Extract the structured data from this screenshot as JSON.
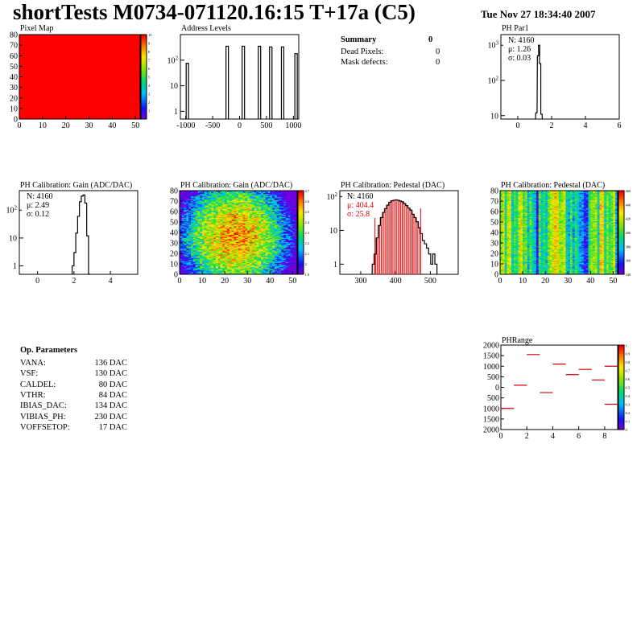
{
  "header": {
    "title": "shortTests M0734-071120.16:15 T+17a (C5)",
    "date": "Tue Nov 27 18:34:40 2007"
  },
  "summary": {
    "title": "Summary",
    "value": "0",
    "rows": [
      {
        "label": "Dead Pixels:",
        "value": "0"
      },
      {
        "label": "Mask defects:",
        "value": "0"
      }
    ]
  },
  "op_parameters": {
    "title": "Op. Parameters",
    "rows": [
      {
        "label": "VANA:",
        "value": "136 DAC"
      },
      {
        "label": "VSF:",
        "value": "130 DAC"
      },
      {
        "label": "CALDEL:",
        "value": "80 DAC"
      },
      {
        "label": "VTHR:",
        "value": "84 DAC"
      },
      {
        "label": "IBIAS_DAC:",
        "value": "134 DAC"
      },
      {
        "label": "VIBIAS_PH:",
        "value": "230 DAC"
      },
      {
        "label": "VOFFSETOP:",
        "value": "17 DAC"
      }
    ]
  },
  "chart_data": [
    {
      "id": "pixel_map",
      "type": "heatmap",
      "title": "Pixel Map",
      "xlim": [
        0,
        52
      ],
      "ylim": [
        0,
        80
      ],
      "x_ticks": [
        "0",
        "10",
        "20",
        "30",
        "40",
        "50"
      ],
      "y_ticks": [
        "0",
        "10",
        "20",
        "30",
        "40",
        "50",
        "60",
        "70",
        "80"
      ],
      "value": 10,
      "color_ticks": [
        "1",
        "2",
        "3",
        "4",
        "5",
        "6",
        "7",
        "8",
        "9",
        "10"
      ]
    },
    {
      "id": "address_levels",
      "type": "bar",
      "title": "Address Levels",
      "log_y": true,
      "xlim": [
        -1100,
        1100
      ],
      "x_ticks": [
        "-1000",
        "-500",
        "0",
        "500",
        "1000"
      ],
      "y_ticks": [
        "1",
        "10",
        "10^2"
      ],
      "peaks": [
        {
          "x": -970,
          "y": 75
        },
        {
          "x": -230,
          "y": 350
        },
        {
          "x": 70,
          "y": 350
        },
        {
          "x": 370,
          "y": 350
        },
        {
          "x": 580,
          "y": 330
        },
        {
          "x": 800,
          "y": 330
        },
        {
          "x": 1050,
          "y": 180
        }
      ]
    },
    {
      "id": "ph_par1",
      "type": "bar",
      "title": "PH Par1",
      "log_y": true,
      "xlim": [
        -1,
        6
      ],
      "x_ticks": [
        "0",
        "2",
        "4",
        "6"
      ],
      "y_ticks": [
        "10",
        "10^2",
        "10^3"
      ],
      "stats": {
        "n": "N: 4160",
        "mu": "μ: 1.26",
        "sigma": "σ: 0.03"
      },
      "bins": [
        [
          1.1,
          12
        ],
        [
          1.2,
          500
        ],
        [
          1.26,
          1000
        ],
        [
          1.32,
          300
        ],
        [
          1.4,
          11
        ]
      ]
    },
    {
      "id": "gain_hist",
      "type": "bar",
      "title": "PH Calibration: Gain (ADC/DAC)",
      "log_y": true,
      "xlim": [
        -1,
        5.5
      ],
      "x_ticks": [
        "0",
        "2",
        "4"
      ],
      "y_ticks": [
        "1",
        "10",
        "10^2"
      ],
      "stats": {
        "n": "N: 4160",
        "mu": "μ: 2.49",
        "sigma": "σ: 0.12"
      },
      "bins": [
        [
          1.95,
          1
        ],
        [
          2.05,
          3
        ],
        [
          2.15,
          15
        ],
        [
          2.25,
          60
        ],
        [
          2.35,
          200
        ],
        [
          2.45,
          320
        ],
        [
          2.55,
          350
        ],
        [
          2.65,
          180
        ],
        [
          2.75,
          12
        ],
        [
          2.85,
          0.5
        ]
      ]
    },
    {
      "id": "gain_map",
      "type": "heatmap",
      "title": "PH Calibration: Gain (ADC/DAC)",
      "xlim": [
        0,
        52
      ],
      "ylim": [
        0,
        80
      ],
      "x_ticks": [
        "0",
        "10",
        "20",
        "30",
        "40",
        "50"
      ],
      "y_ticks": [
        "0",
        "10",
        "20",
        "30",
        "40",
        "50",
        "60",
        "70",
        "80"
      ],
      "zlim": [
        1.9,
        2.7
      ],
      "color_ticks": [
        "1.9",
        "2",
        "2.1",
        "2.2",
        "2.3",
        "2.4",
        "2.5",
        "2.6",
        "2.7"
      ]
    },
    {
      "id": "pedestal_hist",
      "type": "bar",
      "title": "PH Calibration: Pedestal (DAC)",
      "log_y": true,
      "xlim": [
        240,
        580
      ],
      "x_ticks": [
        "300",
        "400",
        "500"
      ],
      "y_ticks": [
        "1",
        "10",
        "10^2"
      ],
      "stats": {
        "n": "N: 4160",
        "mu": "μ: 404.4",
        "sigma": "σ: 25.8"
      },
      "fit_lines": [
        341,
        472
      ],
      "bins": [
        [
          336,
          1
        ],
        [
          342,
          2
        ],
        [
          348,
          6
        ],
        [
          354,
          14
        ],
        [
          360,
          24
        ],
        [
          366,
          34
        ],
        [
          372,
          44
        ],
        [
          378,
          56
        ],
        [
          384,
          68
        ],
        [
          390,
          75
        ],
        [
          396,
          78
        ],
        [
          402,
          80
        ],
        [
          408,
          78
        ],
        [
          414,
          74
        ],
        [
          420,
          70
        ],
        [
          426,
          62
        ],
        [
          432,
          54
        ],
        [
          438,
          46
        ],
        [
          444,
          40
        ],
        [
          450,
          30
        ],
        [
          456,
          24
        ],
        [
          462,
          18
        ],
        [
          468,
          12
        ],
        [
          474,
          8
        ],
        [
          480,
          5
        ],
        [
          486,
          4
        ],
        [
          492,
          3
        ],
        [
          498,
          2
        ],
        [
          504,
          1
        ],
        [
          510,
          2
        ],
        [
          516,
          1
        ]
      ]
    },
    {
      "id": "pedestal_map",
      "type": "heatmap",
      "title": "PH Calibration: Pedestal (DAC)",
      "xlim": [
        0,
        52
      ],
      "ylim": [
        0,
        80
      ],
      "x_ticks": [
        "0",
        "10",
        "20",
        "30",
        "40",
        "50"
      ],
      "y_ticks": [
        "0",
        "10",
        "20",
        "30",
        "40",
        "50",
        "60",
        "70",
        "80"
      ],
      "zlim": [
        340,
        460
      ],
      "color_ticks": [
        "340",
        "360",
        "380",
        "400",
        "420",
        "440",
        "460"
      ]
    },
    {
      "id": "ph_range",
      "type": "scatter",
      "title": "PHRange",
      "xlim": [
        0,
        9
      ],
      "ylim": [
        -2000,
        2000
      ],
      "x_ticks": [
        "0",
        "2",
        "4",
        "6",
        "8"
      ],
      "y_ticks": [
        "2000",
        "1500",
        "1000",
        "500",
        "0",
        "500",
        "1000",
        "1500",
        "2000"
      ],
      "color_ticks": [
        "0",
        "0.1",
        "0.2",
        "0.3",
        "0.4",
        "0.5",
        "0.6",
        "0.7",
        "0.8",
        "0.9",
        "1"
      ],
      "points": [
        {
          "x": 0.5,
          "y": -1000
        },
        {
          "x": 1.5,
          "y": 100
        },
        {
          "x": 2.5,
          "y": 1550
        },
        {
          "x": 3.5,
          "y": -250
        },
        {
          "x": 4.5,
          "y": 1100
        },
        {
          "x": 5.5,
          "y": 600
        },
        {
          "x": 6.5,
          "y": 850
        },
        {
          "x": 7.5,
          "y": 350
        },
        {
          "x": 8.5,
          "y": 1000
        },
        {
          "x": 8.5,
          "y": -800
        }
      ]
    }
  ]
}
